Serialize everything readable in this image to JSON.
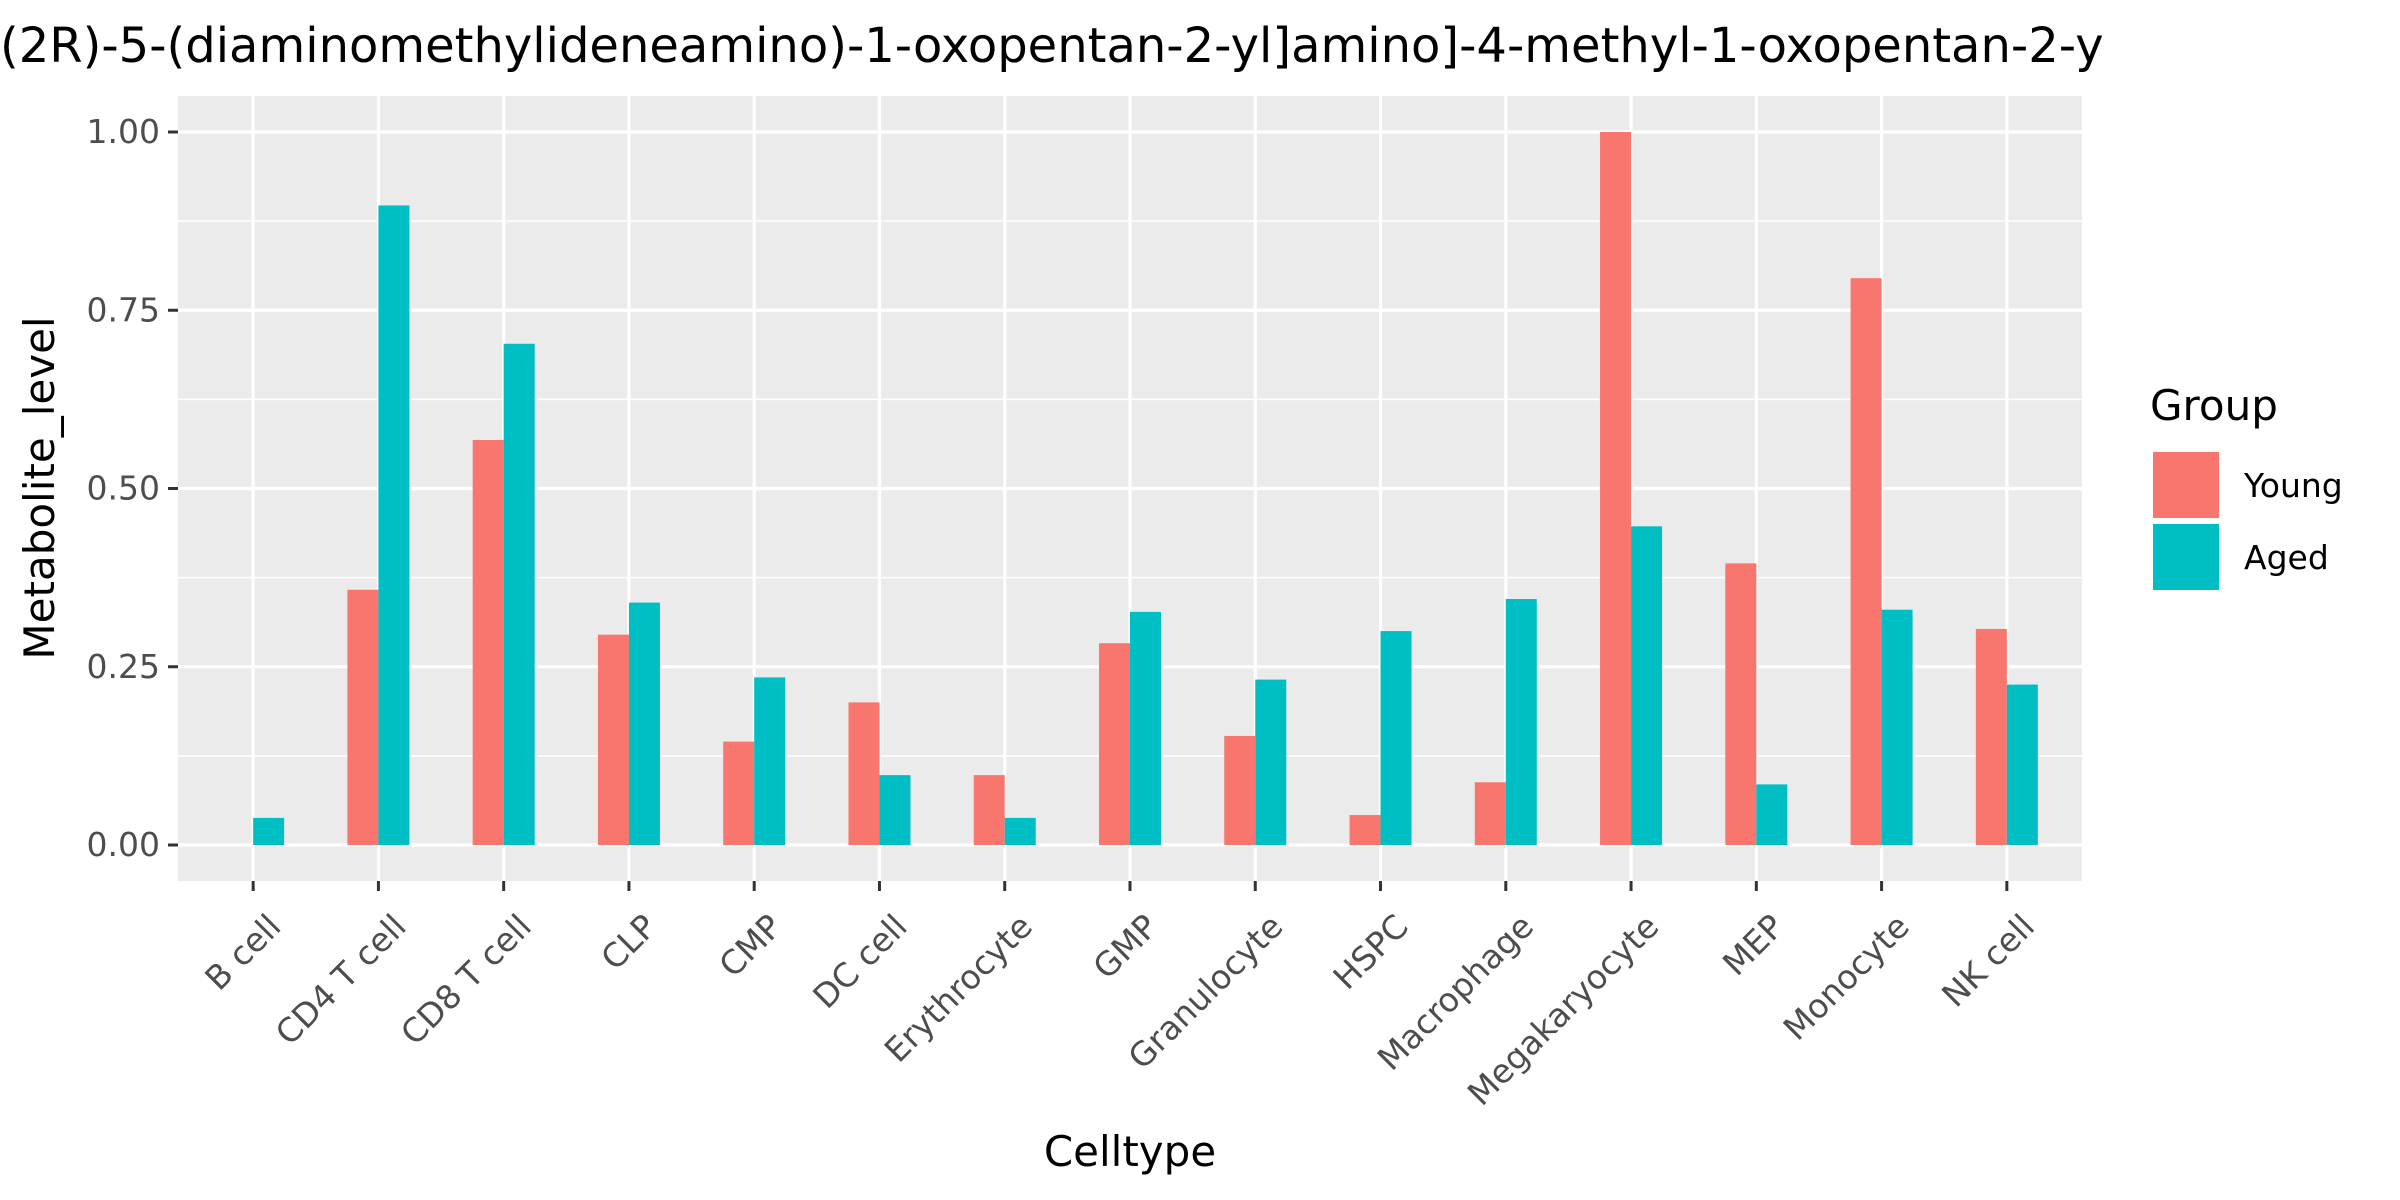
{
  "chart_data": {
    "type": "bar",
    "title": "(2R)-5-(diaminomethylideneamino)-1-oxopentan-2-yl]amino]-4-methyl-1-oxopentan-2-y",
    "xlabel": "Celltype",
    "ylabel": "Metabolite_level",
    "ylim": [
      0,
      1.05
    ],
    "yticks": [
      "0.00",
      "0.25",
      "0.50",
      "0.75",
      "1.00"
    ],
    "categories": [
      "B cell",
      "CD4 T cell",
      "CD8 T cell",
      "CLP",
      "CMP",
      "DC cell",
      "Erythrocyte",
      "GMP",
      "Granulocyte",
      "HSPC",
      "Macrophage",
      "Megakaryocyte",
      "MEP",
      "Monocyte",
      "NK cell"
    ],
    "series": [
      {
        "name": "Young",
        "color": "#F8766D",
        "values": [
          0,
          0.358,
          0.568,
          0.295,
          0.145,
          0.2,
          0.098,
          0.283,
          0.153,
          0.042,
          0.088,
          1.0,
          0.395,
          0.795,
          0.303
        ]
      },
      {
        "name": "Aged",
        "color": "#00BFC4",
        "values": [
          0.038,
          0.897,
          0.703,
          0.34,
          0.235,
          0.098,
          0.038,
          0.327,
          0.232,
          0.3,
          0.345,
          0.447,
          0.085,
          0.33,
          0.225
        ]
      }
    ],
    "legend": {
      "title": "Group",
      "position": "right"
    },
    "grid": true
  }
}
